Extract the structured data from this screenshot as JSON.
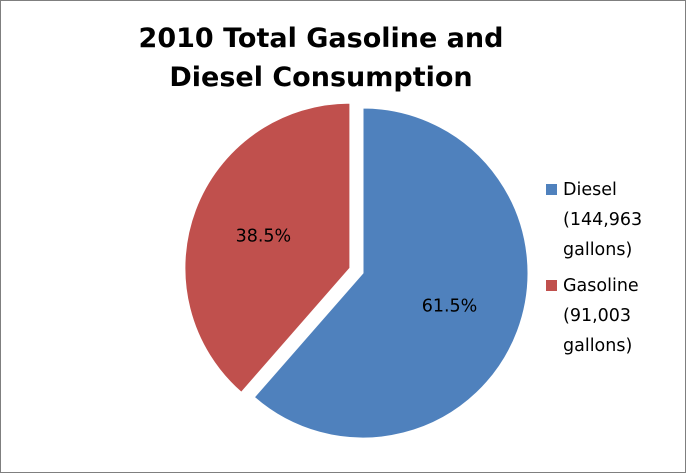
{
  "chart_data": {
    "type": "pie",
    "title": "2010 Total Gasoline and Diesel Consumption",
    "slices": [
      {
        "name": "Diesel",
        "value": 144963,
        "percent": 61.5,
        "percent_label": "61.5%",
        "legend_lines": [
          "Diesel",
          "(144,963",
          "gallons)"
        ],
        "color": "#4f81bd"
      },
      {
        "name": "Gasoline",
        "value": 91003,
        "percent": 38.5,
        "percent_label": "38.5%",
        "legend_lines": [
          "Gasoline",
          "(91,003",
          "gallons)"
        ],
        "color": "#c0504d"
      }
    ],
    "legend_position": "right"
  }
}
